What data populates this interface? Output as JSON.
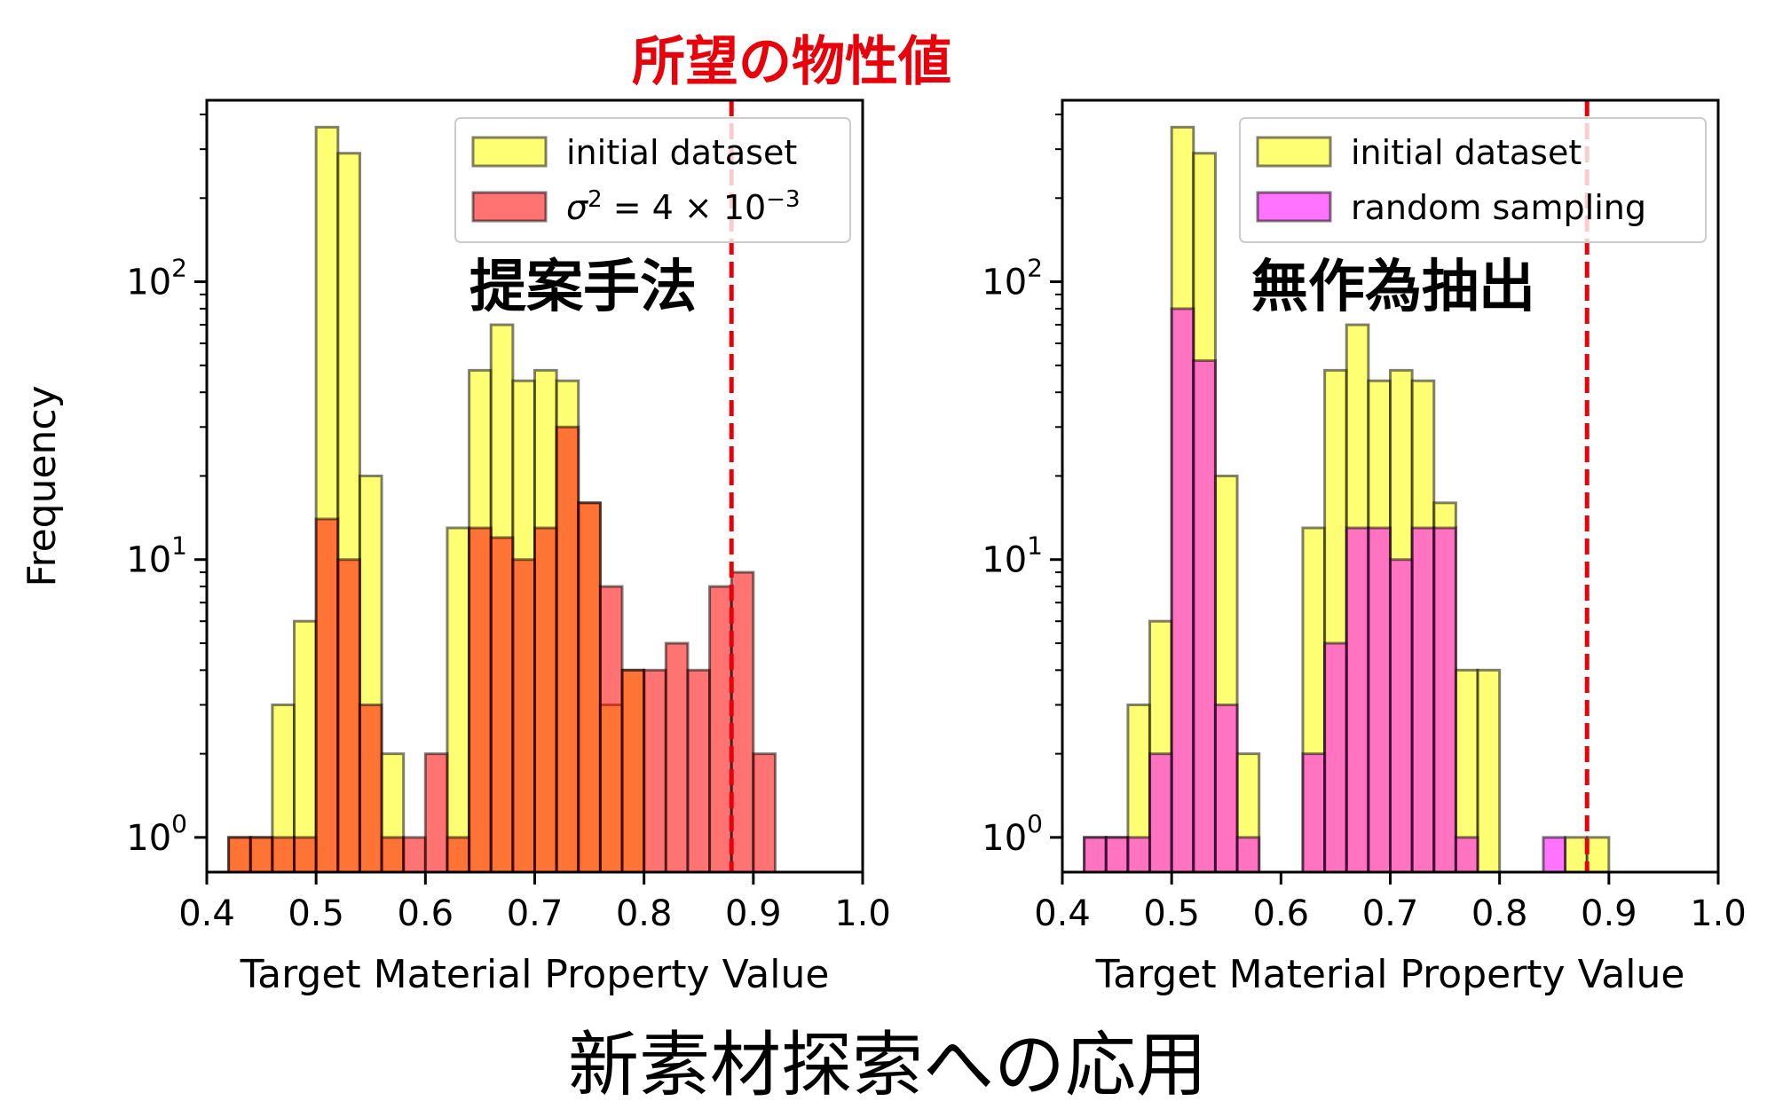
{
  "figure": {
    "target_label": "所望の物性値",
    "caption": "新素材探索への応用"
  },
  "colors": {
    "initial": "#ffff00",
    "proposed": "#ff0000",
    "random": "#ff00ff",
    "target_line": "#e8000b",
    "edge": "#000000"
  },
  "chart_data": [
    {
      "type": "bar",
      "histogram": true,
      "method_label": "提案手法",
      "xlabel": "Target Material Property Value",
      "ylabel": "Frequency",
      "xlim": [
        0.4,
        1.0
      ],
      "ylim": [
        0.75,
        450
      ],
      "yscale": "log",
      "xticks": [
        "0.4",
        "0.5",
        "0.6",
        "0.7",
        "0.8",
        "0.9",
        "1.0"
      ],
      "yticks": [
        {
          "value": 1,
          "base": "10",
          "exp": "0"
        },
        {
          "value": 10,
          "base": "10",
          "exp": "1"
        },
        {
          "value": 100,
          "base": "10",
          "exp": "2"
        }
      ],
      "target_value": 0.88,
      "legend_position": "upper right",
      "series": [
        {
          "name": "initial dataset",
          "color": "#ffff00",
          "bin_width": 0.02,
          "bin_starts": [
            0.42,
            0.44,
            0.46,
            0.48,
            0.5,
            0.52,
            0.54,
            0.56,
            0.62,
            0.64,
            0.66,
            0.68,
            0.7,
            0.72,
            0.74,
            0.76,
            0.78
          ],
          "values": [
            1,
            1,
            3,
            6,
            360,
            290,
            20,
            2,
            13,
            48,
            70,
            44,
            48,
            44,
            16,
            3,
            4
          ]
        },
        {
          "name": "σ² = 4 × 10⁻³",
          "legend_main": "σ",
          "legend_sup1": "2",
          "legend_mid": " = 4 × 10",
          "legend_sup2": "−3",
          "color": "#ff0000",
          "bin_width": 0.02,
          "bin_starts": [
            0.42,
            0.44,
            0.46,
            0.48,
            0.5,
            0.52,
            0.54,
            0.56,
            0.58,
            0.6,
            0.62,
            0.64,
            0.66,
            0.68,
            0.7,
            0.72,
            0.74,
            0.76,
            0.78,
            0.8,
            0.82,
            0.84,
            0.86,
            0.88,
            0.9
          ],
          "values": [
            1,
            1,
            1,
            1,
            14,
            10,
            3,
            1,
            1,
            2,
            1,
            13,
            12,
            10,
            13,
            30,
            16,
            8,
            4,
            4,
            5,
            4,
            8,
            9,
            2
          ]
        }
      ]
    },
    {
      "type": "bar",
      "histogram": true,
      "method_label": "無作為抽出",
      "xlabel": "Target Material Property Value",
      "ylabel": "",
      "xlim": [
        0.4,
        1.0
      ],
      "ylim": [
        0.75,
        450
      ],
      "yscale": "log",
      "xticks": [
        "0.4",
        "0.5",
        "0.6",
        "0.7",
        "0.8",
        "0.9",
        "1.0"
      ],
      "yticks": [
        {
          "value": 1,
          "base": "10",
          "exp": "0"
        },
        {
          "value": 10,
          "base": "10",
          "exp": "1"
        },
        {
          "value": 100,
          "base": "10",
          "exp": "2"
        }
      ],
      "target_value": 0.88,
      "legend_position": "upper right",
      "series": [
        {
          "name": "initial dataset",
          "color": "#ffff00",
          "bin_width": 0.02,
          "bin_starts": [
            0.42,
            0.44,
            0.46,
            0.48,
            0.5,
            0.52,
            0.54,
            0.56,
            0.62,
            0.64,
            0.66,
            0.68,
            0.7,
            0.72,
            0.74,
            0.76,
            0.78,
            0.86,
            0.88
          ],
          "values": [
            1,
            1,
            3,
            6,
            360,
            290,
            20,
            2,
            13,
            48,
            70,
            44,
            48,
            44,
            16,
            4,
            4,
            1,
            1
          ]
        },
        {
          "name": "random sampling",
          "color": "#ff00ff",
          "bin_width": 0.02,
          "bin_starts": [
            0.42,
            0.44,
            0.46,
            0.48,
            0.5,
            0.52,
            0.54,
            0.56,
            0.62,
            0.64,
            0.66,
            0.68,
            0.7,
            0.72,
            0.74,
            0.76,
            0.84
          ],
          "values": [
            1,
            1,
            1,
            2,
            80,
            52,
            3,
            1,
            2,
            5,
            13,
            13,
            10,
            13,
            13,
            1,
            1
          ]
        }
      ]
    }
  ]
}
